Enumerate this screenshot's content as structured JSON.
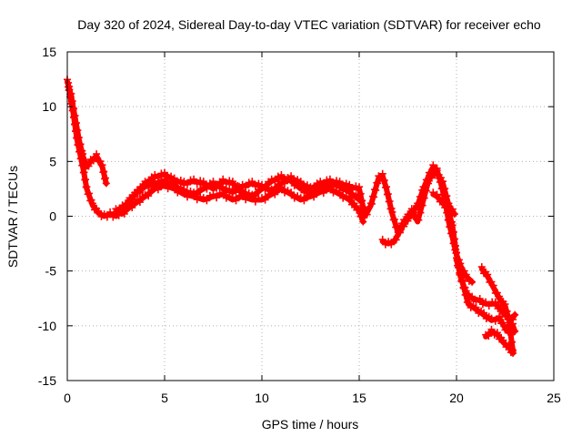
{
  "chart_data": {
    "type": "scatter",
    "title": "Day 320 of 2024, Sidereal Day-to-day VTEC variation (SDTVAR) for receiver echo",
    "xlabel": "GPS time / hours",
    "ylabel": "SDTVAR / TECUs",
    "xlim": [
      0,
      25
    ],
    "ylim": [
      -15,
      15
    ],
    "xticks": [
      0,
      5,
      10,
      15,
      20,
      25
    ],
    "yticks": [
      -15,
      -10,
      -5,
      0,
      5,
      10,
      15
    ],
    "grid": true,
    "marker": "plus",
    "color": "#ff0000",
    "series": [
      {
        "name": "track-1",
        "points": [
          [
            0.0,
            12.3
          ],
          [
            0.2,
            11.0
          ],
          [
            0.4,
            9.0
          ],
          [
            0.6,
            7.0
          ],
          [
            0.8,
            5.5
          ],
          [
            1.0,
            4.5
          ],
          [
            1.2,
            5.0
          ],
          [
            1.5,
            5.5
          ],
          [
            1.8,
            4.5
          ],
          [
            2.0,
            3.0
          ]
        ]
      },
      {
        "name": "track-2",
        "points": [
          [
            0.05,
            12.0
          ],
          [
            0.3,
            9.5
          ],
          [
            0.5,
            7.0
          ],
          [
            0.8,
            4.5
          ],
          [
            1.0,
            2.5
          ],
          [
            1.3,
            1.0
          ],
          [
            1.6,
            0.3
          ],
          [
            1.9,
            0.0
          ],
          [
            2.2,
            0.2
          ],
          [
            2.5,
            0.0
          ],
          [
            2.8,
            0.5
          ],
          [
            3.2,
            1.5
          ],
          [
            3.6,
            2.2
          ],
          [
            4.0,
            2.7
          ],
          [
            4.5,
            3.0
          ],
          [
            5.0,
            3.2
          ],
          [
            5.5,
            2.8
          ],
          [
            6.0,
            2.3
          ],
          [
            6.5,
            2.0
          ],
          [
            7.0,
            2.5
          ],
          [
            7.5,
            3.0
          ],
          [
            8.0,
            2.5
          ],
          [
            8.5,
            2.2
          ],
          [
            9.0,
            2.7
          ],
          [
            9.5,
            3.0
          ],
          [
            10.0,
            2.7
          ],
          [
            10.5,
            2.3
          ],
          [
            11.0,
            3.0
          ],
          [
            11.5,
            3.5
          ],
          [
            12.0,
            3.0
          ],
          [
            12.5,
            2.5
          ],
          [
            13.0,
            3.0
          ],
          [
            13.5,
            3.2
          ],
          [
            14.0,
            3.0
          ],
          [
            14.5,
            2.7
          ],
          [
            15.0,
            2.5
          ],
          [
            15.3,
            0.0
          ],
          [
            15.6,
            1.0
          ],
          [
            16.0,
            3.5
          ],
          [
            16.2,
            3.7
          ],
          [
            16.4,
            2.5
          ],
          [
            16.7,
            0.2
          ],
          [
            17.0,
            -1.5
          ],
          [
            17.3,
            -0.5
          ],
          [
            17.7,
            0.5
          ],
          [
            18.0,
            -0.5
          ],
          [
            18.3,
            1.5
          ],
          [
            18.6,
            3.5
          ],
          [
            19.0,
            4.0
          ],
          [
            19.3,
            3.0
          ],
          [
            19.6,
            1.0
          ],
          [
            19.9,
            0.2
          ]
        ]
      },
      {
        "name": "track-3",
        "points": [
          [
            2.5,
            0.5
          ],
          [
            3.0,
            1.0
          ],
          [
            3.5,
            2.0
          ],
          [
            4.0,
            3.0
          ],
          [
            4.5,
            3.6
          ],
          [
            5.0,
            3.8
          ],
          [
            5.5,
            3.3
          ],
          [
            6.0,
            3.0
          ],
          [
            6.5,
            3.2
          ],
          [
            7.0,
            3.0
          ],
          [
            7.5,
            2.5
          ],
          [
            8.0,
            3.2
          ],
          [
            8.5,
            3.0
          ],
          [
            9.0,
            2.2
          ],
          [
            9.5,
            1.8
          ],
          [
            10.0,
            2.5
          ],
          [
            10.5,
            3.2
          ],
          [
            11.0,
            3.6
          ],
          [
            11.5,
            3.2
          ],
          [
            12.0,
            2.5
          ],
          [
            12.5,
            2.0
          ],
          [
            13.0,
            2.5
          ],
          [
            13.5,
            3.0
          ],
          [
            14.0,
            2.7
          ],
          [
            14.5,
            2.2
          ],
          [
            15.0,
            1.5
          ]
        ]
      },
      {
        "name": "track-4",
        "points": [
          [
            2.8,
            0.2
          ],
          [
            3.2,
            0.8
          ],
          [
            3.6,
            1.3
          ],
          [
            4.0,
            1.8
          ],
          [
            4.5,
            2.5
          ],
          [
            5.0,
            2.8
          ],
          [
            5.5,
            2.5
          ],
          [
            6.0,
            2.0
          ],
          [
            6.5,
            1.8
          ],
          [
            7.0,
            1.5
          ],
          [
            7.5,
            1.8
          ],
          [
            8.0,
            2.0
          ],
          [
            8.5,
            1.5
          ],
          [
            9.0,
            1.8
          ],
          [
            9.5,
            1.5
          ],
          [
            10.0,
            1.5
          ],
          [
            10.5,
            2.0
          ],
          [
            11.0,
            2.5
          ],
          [
            11.5,
            2.0
          ],
          [
            12.0,
            1.5
          ],
          [
            12.5,
            1.8
          ],
          [
            13.0,
            2.2
          ],
          [
            13.5,
            2.5
          ],
          [
            14.0,
            2.0
          ],
          [
            14.5,
            1.5
          ],
          [
            15.0,
            0.5
          ],
          [
            15.2,
            -0.5
          ]
        ]
      },
      {
        "name": "track-5",
        "points": [
          [
            16.2,
            -2.3
          ],
          [
            16.5,
            -2.5
          ],
          [
            16.8,
            -2.3
          ],
          [
            17.2,
            -1.0
          ],
          [
            17.6,
            0.0
          ],
          [
            18.0,
            1.0
          ],
          [
            18.3,
            2.5
          ],
          [
            18.6,
            3.8
          ],
          [
            18.8,
            4.5
          ],
          [
            19.0,
            4.2
          ],
          [
            19.2,
            3.0
          ],
          [
            19.4,
            1.5
          ],
          [
            19.6,
            -0.5
          ],
          [
            19.8,
            -2.0
          ],
          [
            20.0,
            -3.5
          ],
          [
            20.2,
            -4.5
          ],
          [
            20.5,
            -5.5
          ],
          [
            20.8,
            -6.0
          ]
        ]
      },
      {
        "name": "track-6",
        "points": [
          [
            18.8,
            2.0
          ],
          [
            19.0,
            1.8
          ],
          [
            19.3,
            1.2
          ],
          [
            19.6,
            0.5
          ],
          [
            19.8,
            -1.0
          ],
          [
            20.0,
            -3.5
          ],
          [
            20.2,
            -5.5
          ],
          [
            20.5,
            -7.0
          ],
          [
            20.8,
            -7.5
          ],
          [
            21.2,
            -7.7
          ],
          [
            21.5,
            -8.0
          ],
          [
            22.0,
            -8.0
          ],
          [
            22.5,
            -9.0
          ],
          [
            22.8,
            -9.5
          ],
          [
            23.0,
            -9.0
          ]
        ]
      },
      {
        "name": "track-7",
        "points": [
          [
            20.0,
            -4.0
          ],
          [
            20.3,
            -6.0
          ],
          [
            20.6,
            -8.0
          ],
          [
            21.0,
            -8.5
          ],
          [
            21.4,
            -9.0
          ],
          [
            21.8,
            -9.5
          ],
          [
            22.2,
            -9.3
          ],
          [
            22.6,
            -10.5
          ],
          [
            22.9,
            -10.0
          ],
          [
            23.0,
            -10.5
          ]
        ]
      },
      {
        "name": "track-8",
        "points": [
          [
            21.3,
            -4.8
          ],
          [
            21.6,
            -5.5
          ],
          [
            21.9,
            -6.5
          ],
          [
            22.2,
            -7.5
          ],
          [
            22.5,
            -8.2
          ],
          [
            22.7,
            -9.5
          ],
          [
            22.8,
            -11.0
          ],
          [
            22.9,
            -12.3
          ]
        ]
      },
      {
        "name": "track-9",
        "points": [
          [
            21.5,
            -11.0
          ],
          [
            21.8,
            -10.5
          ],
          [
            22.1,
            -10.8
          ],
          [
            22.4,
            -11.5
          ],
          [
            22.7,
            -12.0
          ],
          [
            22.9,
            -12.5
          ]
        ]
      }
    ]
  }
}
